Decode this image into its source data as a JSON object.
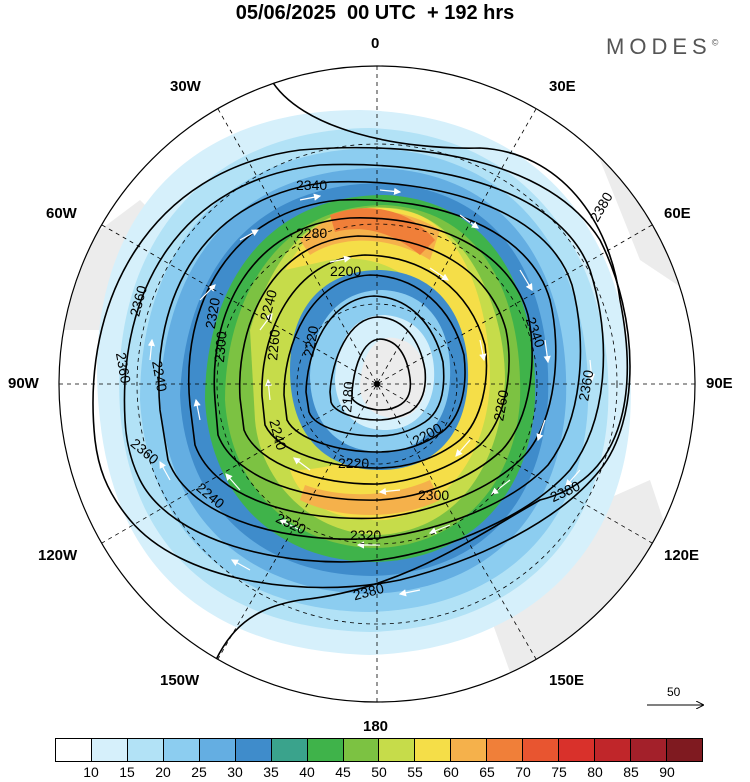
{
  "title": "05/06/2025  00 UTC  + 192 hrs",
  "brand": "MODES",
  "brand_mark": "©",
  "longitude_labels": {
    "l0": "0",
    "l30e": "30E",
    "l60e": "60E",
    "l90e": "90E",
    "l120e": "120E",
    "l150e": "150E",
    "l180": "180",
    "l150w": "150W",
    "l120w": "120W",
    "l90w": "90W",
    "l60w": "60W",
    "l30w": "30W"
  },
  "reference_vector": {
    "label": "50"
  },
  "contour_labels": [
    "2340",
    "2380",
    "2280",
    "2200",
    "2360",
    "2320",
    "2240",
    "2220",
    "2300",
    "2260",
    "2180"
  ],
  "colorbar": {
    "ticks": [
      "10",
      "15",
      "20",
      "25",
      "30",
      "35",
      "40",
      "45",
      "50",
      "55",
      "60",
      "65",
      "70",
      "75",
      "80",
      "85",
      "90"
    ],
    "colors": [
      "#ffffff",
      "#d6f0fb",
      "#b2e2f6",
      "#8ccdf0",
      "#64aee2",
      "#3f8ccb",
      "#3aa38c",
      "#3fb34a",
      "#7cc242",
      "#c6dc4a",
      "#f5de48",
      "#f5b14b",
      "#f07f39",
      "#e85530",
      "#d9312b",
      "#c0262a",
      "#a3202a",
      "#7f1a20"
    ]
  },
  "icons": {
    "pole_marker": "dot-icon",
    "vector": "arrow-icon"
  }
}
